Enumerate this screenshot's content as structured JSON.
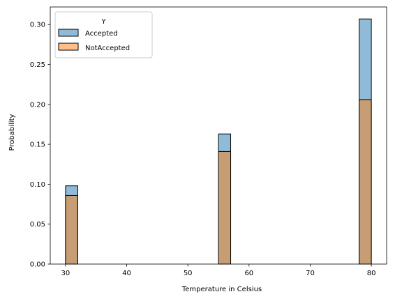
{
  "chart_data": {
    "type": "bar",
    "title": "",
    "xlabel": "Temperature in Celsius",
    "ylabel": "Probability",
    "xlim": [
      27.5,
      82.5
    ],
    "ylim": [
      0,
      0.322
    ],
    "xticks": [
      "30",
      "40",
      "50",
      "60",
      "70",
      "80"
    ],
    "yticks": [
      "0.00",
      "0.05",
      "0.10",
      "0.15",
      "0.20",
      "0.25",
      "0.30"
    ],
    "grid": false,
    "legend": {
      "title": "Y",
      "placement": "top-left"
    },
    "bin_width": 2,
    "series": [
      {
        "name": "Accepted",
        "color": "#1f77b4",
        "bins": [
          {
            "x_start": 30,
            "x_end": 32,
            "value": 0.098
          },
          {
            "x_start": 55,
            "x_end": 57,
            "value": 0.163
          },
          {
            "x_start": 78,
            "x_end": 80,
            "value": 0.307
          }
        ]
      },
      {
        "name": "NotAccepted",
        "color": "#ff7f0e",
        "bins": [
          {
            "x_start": 30,
            "x_end": 32,
            "value": 0.086
          },
          {
            "x_start": 55,
            "x_end": 57,
            "value": 0.141
          },
          {
            "x_start": 78,
            "x_end": 80,
            "value": 0.206
          }
        ]
      }
    ],
    "overlap_color": "#919ba0"
  }
}
